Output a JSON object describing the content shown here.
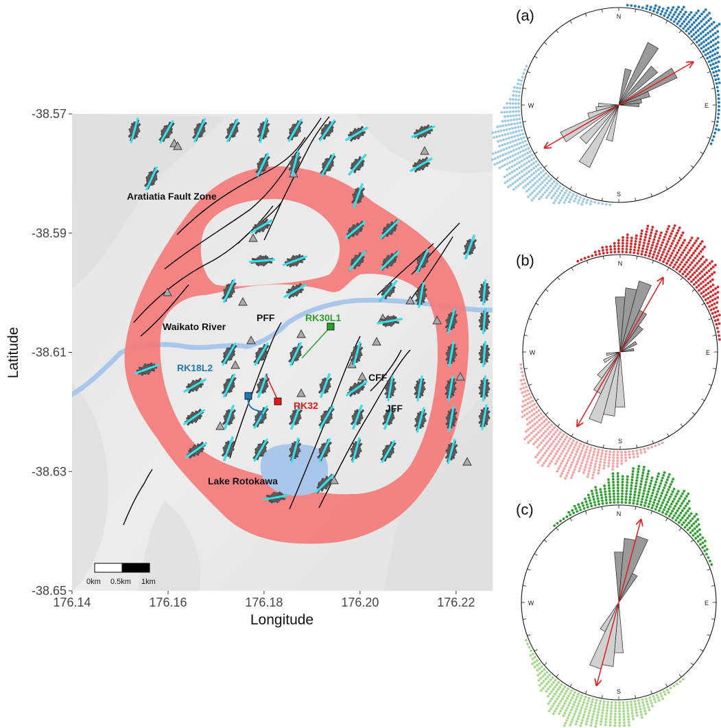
{
  "map": {
    "ylabel": "Latitude",
    "xlabel": "Longitude",
    "x_ticks": [
      "176.14",
      "176.16",
      "176.18",
      "176.20",
      "176.22"
    ],
    "y_ticks": [
      "-38.57",
      "-38.59",
      "-38.61",
      "-38.63",
      "-38.65"
    ],
    "x_values": [
      176.14,
      176.16,
      176.18,
      176.2,
      176.22
    ],
    "y_values": [
      -38.57,
      -38.59,
      -38.61,
      -38.63,
      -38.65
    ],
    "feature_labels": {
      "aratiatia": "Aratiatia Fault Zone",
      "waikato": "Waikato River",
      "pff": "PFF",
      "cff": "CFF",
      "jff": "JFF",
      "lake": "Lake Rotokawa"
    },
    "wells": [
      {
        "name": "RK30L1",
        "color": "#2ca02c"
      },
      {
        "name": "RK18L2",
        "color": "#1f77b4"
      },
      {
        "name": "RK32",
        "color": "#e31a1c"
      }
    ],
    "scalebar": {
      "labels": [
        "0km",
        "0.5km",
        "1km"
      ]
    },
    "colors": {
      "zone": "#f47b7b",
      "river": "#a9c7ea",
      "lake": "#a9c7ea",
      "fault": "#000000",
      "rose": "#555555",
      "orientation_bar": "#33e4f0",
      "station": "#aaaaaa"
    }
  },
  "roses": [
    {
      "label": "(a)",
      "mean_azimuth_deg": 60,
      "color_dark": "#1f77b4",
      "color_light": "#9ecae1",
      "compass": {
        "n": "N",
        "e": "E",
        "s": "S",
        "w": "W"
      }
    },
    {
      "label": "(b)",
      "mean_azimuth_deg": 30,
      "color_dark": "#d62728",
      "color_light": "#f4a3a3",
      "compass": {
        "n": "N",
        "e": "E",
        "s": "S",
        "w": "W"
      }
    },
    {
      "label": "(c)",
      "mean_azimuth_deg": 15,
      "color_dark": "#2ca02c",
      "color_light": "#a5d98a",
      "compass": {
        "n": "N",
        "e": "E",
        "s": "S",
        "w": "W"
      }
    }
  ]
}
